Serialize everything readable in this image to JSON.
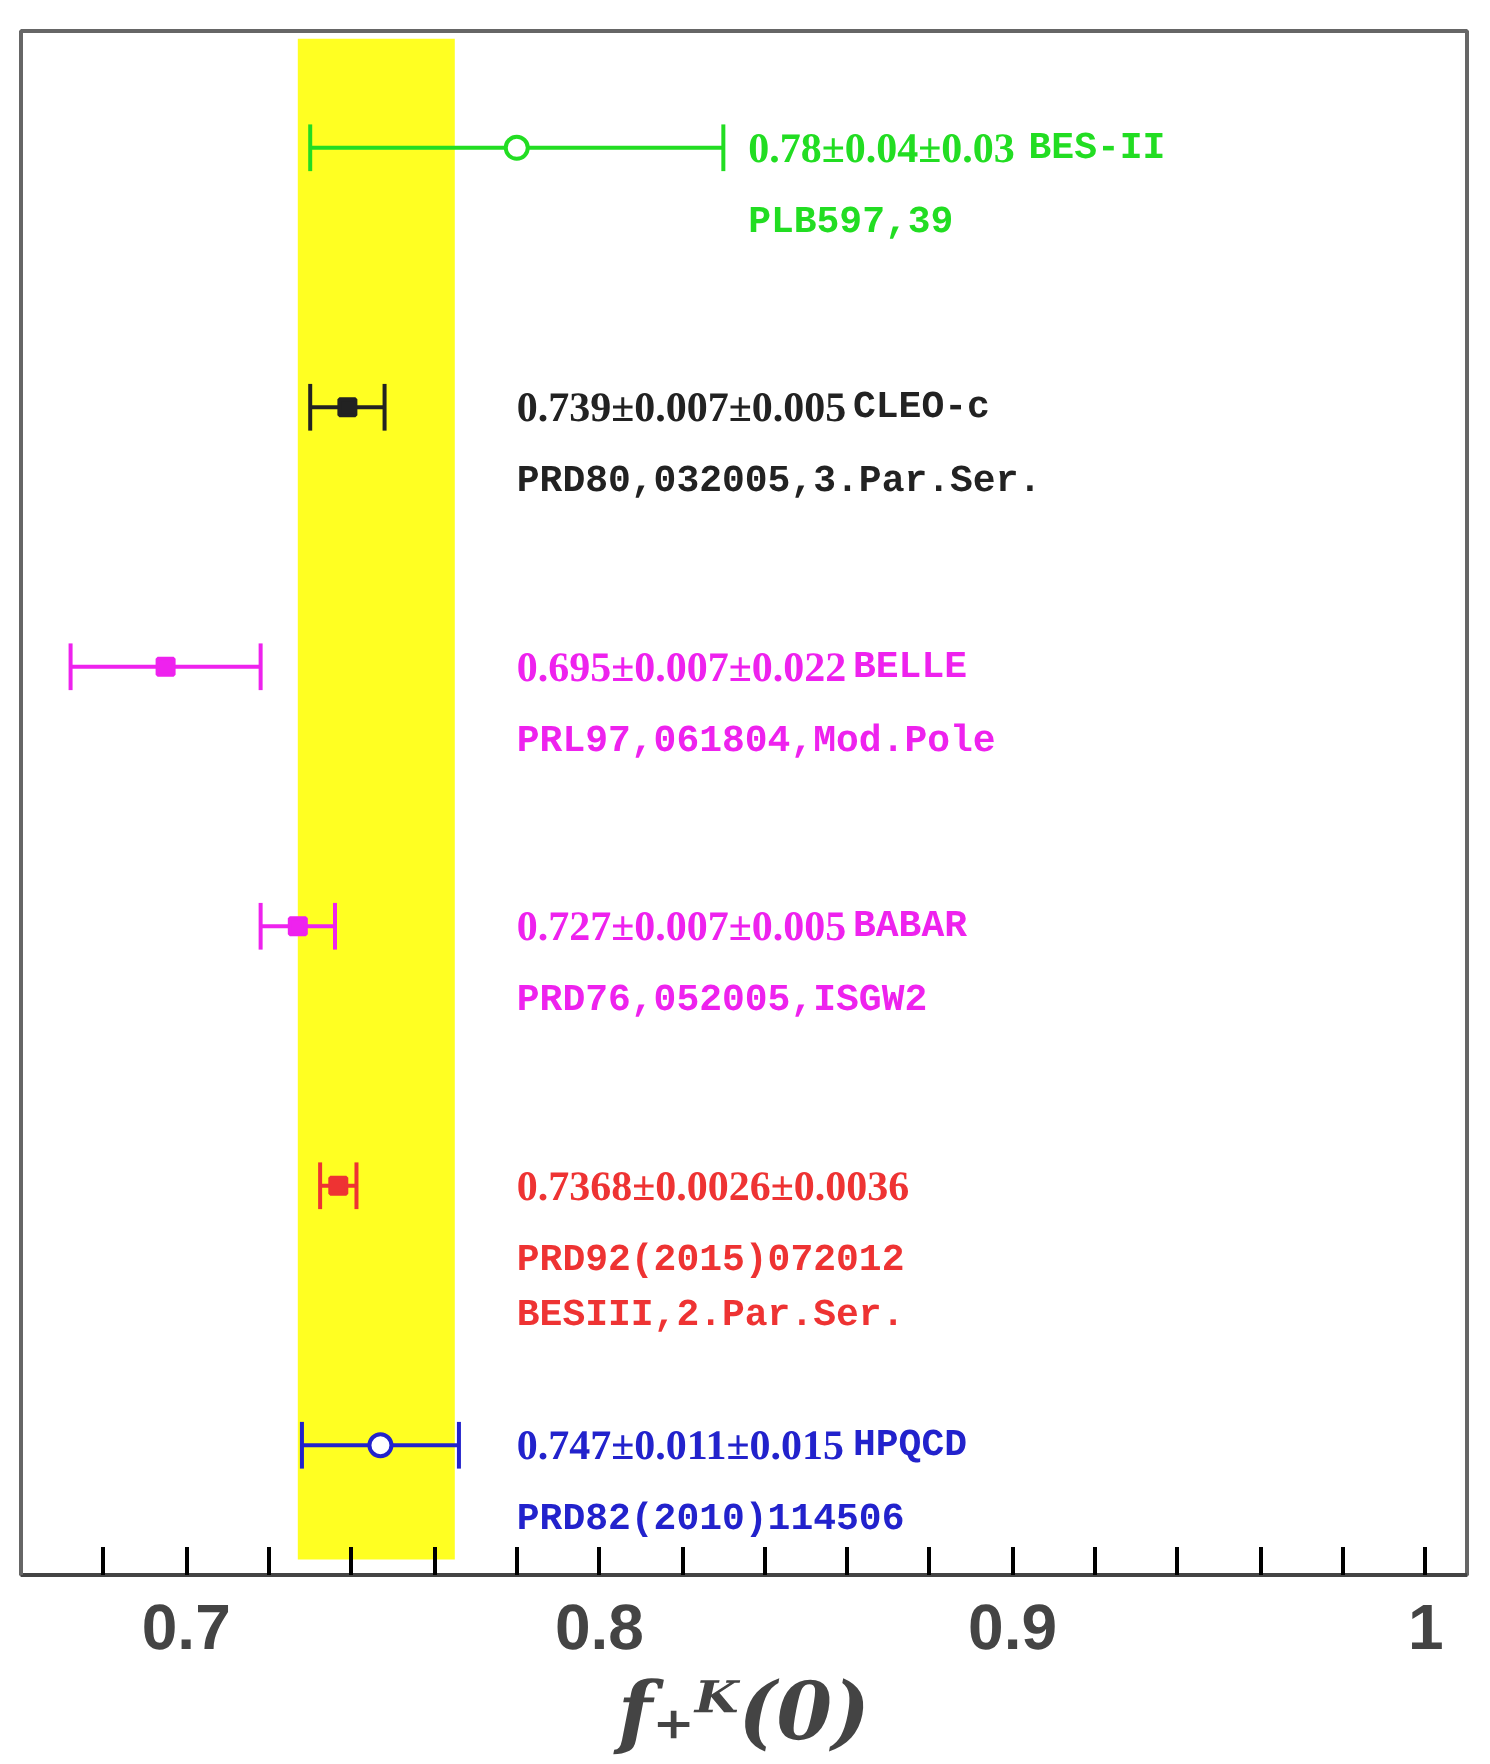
{
  "chart_data": {
    "type": "scatter",
    "orientation": "horizontal",
    "xlabel": "f₊ᴷ(0)",
    "categories": [
      null,
      null,
      null,
      null,
      null,
      null
    ],
    "series": [
      {
        "name": "BES-II",
        "color": "#22dd22",
        "marker": "circle",
        "values": [
          0.78,
          null,
          null,
          null,
          null,
          null
        ],
        "errors": [
          0.05,
          null,
          null,
          null,
          null,
          null
        ]
      },
      {
        "name": "CLEO-c",
        "color": "#222222",
        "marker": "square",
        "values": [
          null,
          0.739,
          null,
          null,
          null,
          null
        ],
        "errors": [
          null,
          0.009,
          null,
          null,
          null,
          null
        ]
      },
      {
        "name": "BELLE",
        "color": "#ee22ee",
        "marker": "square",
        "values": [
          null,
          null,
          0.695,
          null,
          null,
          null
        ],
        "errors": [
          null,
          null,
          0.023,
          null,
          null,
          null
        ]
      },
      {
        "name": "BABAR",
        "color": "#ee22ee",
        "marker": "square",
        "values": [
          null,
          null,
          null,
          0.727,
          null,
          null
        ],
        "errors": [
          null,
          null,
          null,
          0.009,
          null,
          null
        ]
      },
      {
        "color": "#ee3333",
        "marker": "square",
        "values": [
          null,
          null,
          null,
          null,
          0.7368,
          null
        ],
        "errors": [
          null,
          null,
          null,
          null,
          0.0044,
          null
        ]
      },
      {
        "name": "HPQCD",
        "color": "#2222cc",
        "marker": "circle",
        "values": [
          null,
          null,
          null,
          null,
          null,
          0.747
        ],
        "errors": [
          null,
          null,
          null,
          null,
          null,
          0.019
        ]
      }
    ],
    "annotations": [
      "0.78±0.04±0.03\nPLB597,39",
      "0.739±0.007±0.005\nPRD80,032005,3.Par.Ser.",
      "0.695±0.007±0.022\nPRL97,061804,Mod.Pole",
      "0.727±0.007±0.005\nPRD76,052005,ISGW2",
      "0.7368±0.0026±0.0036\nPRD92(2015)072012\nBESIII,2.Par.Ser.",
      "0.747±0.011±0.015\nPRD82(2010)114506"
    ],
    "bands": [
      {
        "axis": "x",
        "from": 0.727,
        "to": 0.765,
        "color": "#ffff22"
      }
    ],
    "xlim": [
      0.66,
      1.01
    ],
    "xticks": [
      {
        "value": 0.66,
        "label": null
      },
      {
        "value": 0.68,
        "label": null
      },
      0.7,
      {
        "value": 0.72,
        "label": null
      },
      {
        "value": 0.74,
        "label": null
      },
      {
        "value": 0.76,
        "label": null
      },
      {
        "value": 0.78,
        "label": null
      },
      0.8,
      {
        "value": 0.82,
        "label": null
      },
      {
        "value": 0.84,
        "label": null
      },
      {
        "value": 0.86,
        "label": null
      },
      {
        "value": 0.88,
        "label": null
      },
      0.9,
      {
        "value": 0.92,
        "label": null
      },
      {
        "value": 0.94,
        "label": null
      },
      {
        "value": 0.96,
        "label": null
      },
      {
        "value": 0.98,
        "label": null
      },
      1
    ],
    "tick_labels": "x",
    "grid": false
  }
}
